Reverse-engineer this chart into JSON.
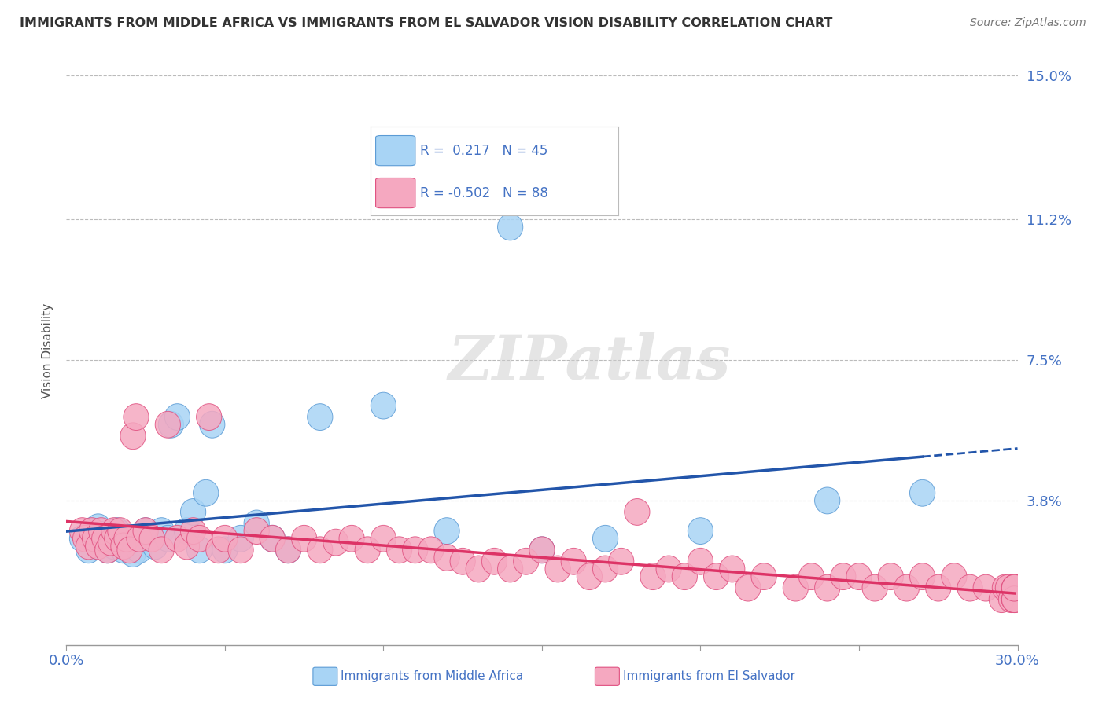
{
  "title": "IMMIGRANTS FROM MIDDLE AFRICA VS IMMIGRANTS FROM EL SALVADOR VISION DISABILITY CORRELATION CHART",
  "source": "Source: ZipAtlas.com",
  "ylabel": "Vision Disability",
  "xlim": [
    0.0,
    0.3
  ],
  "ylim": [
    0.0,
    0.155
  ],
  "yticks": [
    0.0,
    0.038,
    0.075,
    0.112,
    0.15
  ],
  "ytick_labels": [
    "",
    "3.8%",
    "7.5%",
    "11.2%",
    "15.0%"
  ],
  "xticks": [
    0.0,
    0.05,
    0.1,
    0.15,
    0.2,
    0.25,
    0.3
  ],
  "xtick_labels": [
    "0.0%",
    "",
    "",
    "",
    "",
    "",
    "30.0%"
  ],
  "blue_R": 0.217,
  "blue_N": 45,
  "pink_R": -0.502,
  "pink_N": 88,
  "blue_color": "#a8d4f5",
  "pink_color": "#f5a8c0",
  "blue_edge_color": "#5b9bd5",
  "pink_edge_color": "#e05080",
  "blue_line_color": "#2255aa",
  "pink_line_color": "#dd3366",
  "background_color": "#ffffff",
  "grid_color": "#bbbbbb",
  "label_color": "#4472C4",
  "legend_blue": "Immigrants from Middle Africa",
  "legend_pink": "Immigrants from El Salvador",
  "blue_scatter_x": [
    0.005,
    0.007,
    0.008,
    0.009,
    0.01,
    0.01,
    0.011,
    0.012,
    0.013,
    0.014,
    0.015,
    0.016,
    0.017,
    0.018,
    0.019,
    0.02,
    0.021,
    0.022,
    0.023,
    0.025,
    0.026,
    0.028,
    0.03,
    0.032,
    0.033,
    0.035,
    0.038,
    0.04,
    0.042,
    0.044,
    0.046,
    0.05,
    0.055,
    0.06,
    0.065,
    0.07,
    0.08,
    0.1,
    0.12,
    0.14,
    0.15,
    0.17,
    0.2,
    0.24,
    0.27
  ],
  "blue_scatter_y": [
    0.028,
    0.025,
    0.03,
    0.027,
    0.026,
    0.031,
    0.029,
    0.027,
    0.025,
    0.028,
    0.026,
    0.03,
    0.027,
    0.025,
    0.028,
    0.026,
    0.024,
    0.027,
    0.025,
    0.03,
    0.028,
    0.026,
    0.03,
    0.028,
    0.058,
    0.06,
    0.03,
    0.035,
    0.025,
    0.04,
    0.058,
    0.025,
    0.028,
    0.032,
    0.028,
    0.025,
    0.06,
    0.063,
    0.03,
    0.11,
    0.025,
    0.028,
    0.03,
    0.038,
    0.04
  ],
  "pink_scatter_x": [
    0.005,
    0.006,
    0.007,
    0.008,
    0.009,
    0.01,
    0.011,
    0.012,
    0.013,
    0.014,
    0.015,
    0.016,
    0.017,
    0.018,
    0.019,
    0.02,
    0.021,
    0.022,
    0.023,
    0.025,
    0.027,
    0.03,
    0.032,
    0.035,
    0.038,
    0.04,
    0.042,
    0.045,
    0.048,
    0.05,
    0.055,
    0.06,
    0.065,
    0.07,
    0.075,
    0.08,
    0.085,
    0.09,
    0.095,
    0.1,
    0.105,
    0.11,
    0.115,
    0.12,
    0.125,
    0.13,
    0.135,
    0.14,
    0.145,
    0.15,
    0.155,
    0.16,
    0.165,
    0.17,
    0.175,
    0.18,
    0.185,
    0.19,
    0.195,
    0.2,
    0.205,
    0.21,
    0.215,
    0.22,
    0.23,
    0.235,
    0.24,
    0.245,
    0.25,
    0.255,
    0.26,
    0.265,
    0.27,
    0.275,
    0.28,
    0.285,
    0.29,
    0.295,
    0.296,
    0.297,
    0.298,
    0.299,
    0.299,
    0.299,
    0.299,
    0.299,
    0.299,
    0.299
  ],
  "pink_scatter_y": [
    0.03,
    0.028,
    0.026,
    0.03,
    0.028,
    0.026,
    0.03,
    0.028,
    0.025,
    0.027,
    0.03,
    0.028,
    0.03,
    0.026,
    0.028,
    0.025,
    0.055,
    0.06,
    0.028,
    0.03,
    0.028,
    0.025,
    0.058,
    0.028,
    0.026,
    0.03,
    0.028,
    0.06,
    0.025,
    0.028,
    0.025,
    0.03,
    0.028,
    0.025,
    0.028,
    0.025,
    0.027,
    0.028,
    0.025,
    0.028,
    0.025,
    0.025,
    0.025,
    0.023,
    0.022,
    0.02,
    0.022,
    0.02,
    0.022,
    0.025,
    0.02,
    0.022,
    0.018,
    0.02,
    0.022,
    0.035,
    0.018,
    0.02,
    0.018,
    0.022,
    0.018,
    0.02,
    0.015,
    0.018,
    0.015,
    0.018,
    0.015,
    0.018,
    0.018,
    0.015,
    0.018,
    0.015,
    0.018,
    0.015,
    0.018,
    0.015,
    0.015,
    0.012,
    0.015,
    0.015,
    0.012,
    0.015,
    0.012,
    0.015,
    0.012,
    0.015,
    0.012,
    0.015
  ]
}
